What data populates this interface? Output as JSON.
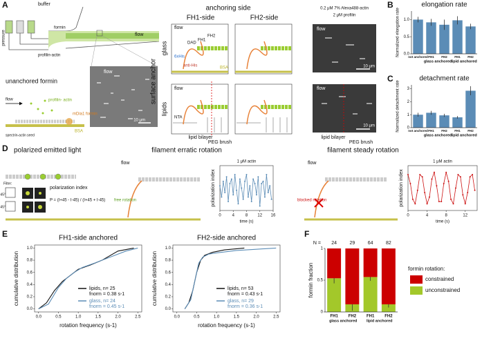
{
  "panels": {
    "a": {
      "letter": "A",
      "buffer": "buffer",
      "pressure": "pressure",
      "formin": "formin",
      "profilin_actin": "profilin-actin",
      "flow": "flow",
      "unanchored": "unanchored formin",
      "profilin_actin2": "profilin- actin",
      "mdia1": "mDia1 formin",
      "bsa": "BSA",
      "seed": "spectrin-actin seed",
      "scale": "10 μm",
      "anchoring_side": "anchoring side",
      "fh1_side": "FH1-side",
      "fh2_side": "FH2-side",
      "surface_anchor": "surface anchor",
      "glass": "glass",
      "lipids": "lipids",
      "fh1": "FH1",
      "fh2": "FH2",
      "dad": "DAD",
      "his": "6xHis",
      "anti_his": "anti-His",
      "nta": "NTA",
      "lipid_bilayer": "lipid bilayer",
      "peg_brush": "PEG brush",
      "conditions": "0.2 μM 7% Alexa488-actin",
      "profilin": "2 μM profilin"
    },
    "b": {
      "letter": "B"
    },
    "c": {
      "letter": "C"
    },
    "d": {
      "letter": "D",
      "polarized": "polarized emitted light",
      "filter": "Filter:",
      "plus45": "+45°",
      "minus45": "-45°",
      "pol_index": "polarization index",
      "formula": "P = (I+45 - I-45) / (I+45 + I-45)",
      "erratic": "filament erratic rotation",
      "free": "free rotation",
      "steady": "filament steady rotation",
      "blocked": "blocked rotation"
    },
    "e": {
      "letter": "E"
    },
    "f": {
      "letter": "F"
    }
  },
  "chart_data": [
    {
      "type": "bar",
      "title": "elongation rate",
      "ylabel": "Normalized elongation rate",
      "categories": [
        "not anchored",
        "FH1",
        "FH2",
        "FH1",
        "FH2"
      ],
      "groups": [
        "glass anchored",
        "lipid anchored"
      ],
      "values": [
        1.0,
        0.92,
        0.85,
        0.98,
        0.8
      ],
      "errors": [
        0.08,
        0.1,
        0.15,
        0.12,
        0.08
      ],
      "color": "#5b8cb6",
      "ylim": [
        0,
        1.25
      ],
      "yticks": [
        {
          "value": 0,
          "label": "0.0"
        },
        0.5,
        {
          "value": 1,
          "label": "1.0"
        }
      ]
    },
    {
      "type": "bar",
      "title": "detachment rate",
      "ylabel": "Normalized detachment rate",
      "categories": [
        "not anchored",
        "FH1",
        "FH2",
        "FH1",
        "FH2"
      ],
      "groups": [
        "glass anchored",
        "lipid anchored"
      ],
      "values": [
        1.0,
        1.15,
        0.95,
        0.8,
        2.85
      ],
      "errors": [
        0.15,
        0.15,
        0.12,
        0.1,
        0.35
      ],
      "color": "#5b8cb6",
      "ylim": [
        0,
        3.3
      ],
      "yticks": [
        0,
        1,
        2,
        3
      ]
    },
    {
      "type": "line",
      "title": "1 μM actin",
      "ylabel": "polarization index",
      "xlabel": "time (s)",
      "x": [
        0,
        0.5,
        1,
        1.5,
        2,
        2.5,
        3,
        3.5,
        4,
        4.5,
        5,
        5.5,
        6,
        6.5,
        7,
        7.5,
        8,
        8.5,
        9,
        9.5,
        10,
        10.5,
        11,
        11.5,
        12,
        12.5,
        13,
        13.5,
        14,
        14.5,
        15,
        15.5
      ],
      "series": [
        {
          "color": "#5b8cb6",
          "values": [
            0.05,
            -0.2,
            0.15,
            -0.1,
            0.25,
            -0.3,
            0.1,
            0.2,
            -0.15,
            0.3,
            -0.05,
            -0.35,
            0.2,
            0.0,
            -0.25,
            0.15,
            0.3,
            -0.2,
            0.05,
            -0.3,
            0.2,
            0.1,
            -0.15,
            0.25,
            -0.4,
            0.1,
            0.15,
            -0.2,
            0.3,
            -0.1,
            0.05,
            -0.25
          ]
        }
      ],
      "xlim": [
        0,
        16
      ],
      "xticks": [
        0,
        4,
        8,
        12,
        16
      ],
      "ylim": [
        -0.5,
        0.5
      ]
    },
    {
      "type": "line",
      "title": "1 μM actin",
      "ylabel": "polarization index",
      "xlabel": "time (s)",
      "x": [
        0,
        0.5,
        1,
        1.5,
        2,
        2.5,
        3,
        3.5,
        4,
        4.5,
        5,
        5.5,
        6,
        6.5,
        7,
        7.5,
        8,
        8.5,
        9,
        9.5,
        10,
        10.5,
        11,
        11.5,
        12,
        12.5,
        13,
        13.5,
        14
      ],
      "series": [
        {
          "color": "#cc1111",
          "values": [
            0.3,
            0.1,
            -0.25,
            -0.35,
            -0.05,
            0.3,
            0.25,
            -0.1,
            -0.35,
            -0.2,
            0.2,
            0.35,
            0.05,
            -0.3,
            -0.3,
            0.1,
            0.35,
            0.15,
            -0.25,
            -0.35,
            0.0,
            0.3,
            0.25,
            -0.15,
            -0.35,
            -0.1,
            0.25,
            0.3,
            -0.05
          ]
        }
      ],
      "xlim": [
        0,
        14.5
      ],
      "xticks": [
        0,
        4,
        8,
        12
      ],
      "ylim": [
        -0.5,
        0.5
      ]
    },
    {
      "type": "line",
      "title": "FH1-side anchored",
      "ylabel": "cumulative distribution",
      "xlabel": "rotation frequency (s-1)",
      "series": [
        {
          "name": "lipids, n= 25",
          "note": "fnorm = 0.38 s-1",
          "color": "#111111",
          "x": [
            0,
            0.2,
            0.4,
            0.6,
            0.8,
            1.0,
            1.3,
            1.6,
            2.0,
            2.4
          ],
          "values": [
            0,
            0.1,
            0.3,
            0.45,
            0.55,
            0.65,
            0.72,
            0.8,
            0.95,
            1.0
          ]
        },
        {
          "name": "glass, n= 24",
          "note": "fnorm = 0.45 s-1",
          "color": "#5b8cb6",
          "x": [
            0,
            0.25,
            0.5,
            0.7,
            0.9,
            1.1,
            1.4,
            1.8,
            2.2,
            2.5
          ],
          "values": [
            0,
            0.08,
            0.35,
            0.5,
            0.6,
            0.68,
            0.75,
            0.85,
            0.95,
            1.0
          ]
        }
      ],
      "xlim": [
        -0.1,
        2.6
      ],
      "xticks": [
        {
          "value": 0,
          "label": "0.0"
        },
        0.5,
        {
          "value": 1,
          "label": "1.0"
        },
        1.5,
        {
          "value": 2,
          "label": "2.0"
        },
        2.5
      ],
      "ylim": [
        -0.05,
        1.05
      ],
      "yticks": [
        {
          "value": 0,
          "label": "0.0"
        },
        0.2,
        0.4,
        0.6,
        0.8,
        {
          "value": 1,
          "label": "1.0"
        }
      ]
    },
    {
      "type": "line",
      "title": "FH2-side anchored",
      "ylabel": "cumulative distribution",
      "xlabel": "rotation frequency (s-1)",
      "series": [
        {
          "name": "lipids, n= 53",
          "note": "fnorm = 0.43 s-1",
          "color": "#111111",
          "x": [
            0.2,
            0.3,
            0.4,
            0.5,
            0.6,
            0.7,
            0.9,
            1.2,
            1.7
          ],
          "values": [
            0,
            0.1,
            0.3,
            0.6,
            0.8,
            0.88,
            0.93,
            0.97,
            1.0
          ]
        },
        {
          "name": "glass, n= 29",
          "note": "fnorm = 0.36 s-1",
          "color": "#5b8cb6",
          "x": [
            0.2,
            0.35,
            0.45,
            0.55,
            0.65,
            0.8,
            1.0,
            1.5,
            2.0,
            2.5
          ],
          "values": [
            0,
            0.15,
            0.45,
            0.75,
            0.85,
            0.9,
            0.92,
            0.96,
            0.98,
            1.0
          ]
        }
      ],
      "xlim": [
        -0.1,
        2.6
      ],
      "xticks": [
        {
          "value": 0,
          "label": "0.0"
        },
        0.5,
        {
          "value": 1,
          "label": "1.0"
        },
        1.5,
        {
          "value": 2,
          "label": "2.0"
        },
        2.5
      ],
      "ylim": [
        -0.05,
        1.05
      ],
      "yticks": [
        {
          "value": 0,
          "label": "0.0"
        },
        0.2,
        0.4,
        0.6,
        0.8,
        {
          "value": 1,
          "label": "1.0"
        }
      ]
    },
    {
      "type": "stacked",
      "ylabel": "formin fraction",
      "legend_title": "formin rotation:",
      "n_label": "N =",
      "n": [
        24,
        29,
        64,
        82
      ],
      "categories": [
        "FH1",
        "FH2",
        "FH1",
        "FH2"
      ],
      "groups": [
        "glass anchored",
        "lipid anchored"
      ],
      "series": [
        {
          "name": "unconstrained",
          "color": "#a3c82a",
          "values": [
            0.53,
            0.12,
            0.55,
            0.12
          ],
          "errors": [
            0.08,
            0.1,
            0.06,
            0.05
          ]
        },
        {
          "name": "constrained",
          "color": "#cc0000",
          "values": [
            0.47,
            0.88,
            0.45,
            0.88
          ]
        }
      ],
      "ylim": [
        0,
        1
      ],
      "yticks": [
        0,
        0.5,
        1
      ]
    }
  ]
}
